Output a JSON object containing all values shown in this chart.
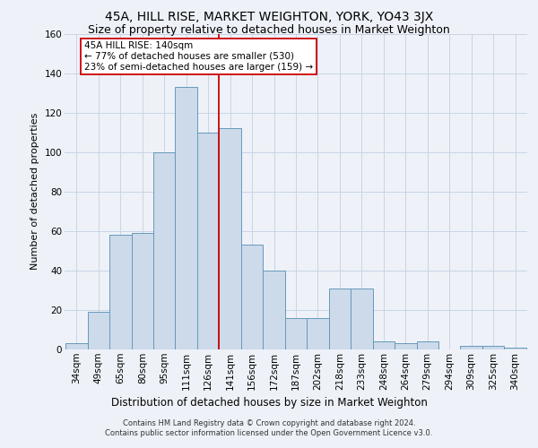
{
  "title": "45A, HILL RISE, MARKET WEIGHTON, YORK, YO43 3JX",
  "subtitle": "Size of property relative to detached houses in Market Weighton",
  "xlabel": "Distribution of detached houses by size in Market Weighton",
  "ylabel": "Number of detached properties",
  "footer_line1": "Contains HM Land Registry data © Crown copyright and database right 2024.",
  "footer_line2": "Contains public sector information licensed under the Open Government Licence v3.0.",
  "categories": [
    "34sqm",
    "49sqm",
    "65sqm",
    "80sqm",
    "95sqm",
    "111sqm",
    "126sqm",
    "141sqm",
    "156sqm",
    "172sqm",
    "187sqm",
    "202sqm",
    "218sqm",
    "233sqm",
    "248sqm",
    "264sqm",
    "279sqm",
    "294sqm",
    "309sqm",
    "325sqm",
    "340sqm"
  ],
  "values": [
    3,
    19,
    58,
    59,
    100,
    133,
    110,
    112,
    53,
    40,
    16,
    16,
    31,
    31,
    4,
    3,
    4,
    0,
    2,
    2,
    1
  ],
  "bar_color": "#ccdaea",
  "bar_edge_color": "#6699bb",
  "grid_color": "#c8d4e4",
  "background_color": "#eef2f8",
  "vline_color": "#cc0000",
  "annotation_line1": "45A HILL RISE: 140sqm",
  "annotation_line2": "← 77% of detached houses are smaller (530)",
  "annotation_line3": "23% of semi-detached houses are larger (159) →",
  "annotation_box_color": "#ffffff",
  "annotation_box_edge": "#cc0000",
  "ylim": [
    0,
    160
  ],
  "yticks": [
    0,
    20,
    40,
    60,
    80,
    100,
    120,
    140,
    160
  ],
  "title_fontsize": 10,
  "subtitle_fontsize": 9,
  "ylabel_fontsize": 8,
  "xlabel_fontsize": 8.5,
  "tick_fontsize": 7.5,
  "annot_fontsize": 7.5,
  "footer_fontsize": 6
}
